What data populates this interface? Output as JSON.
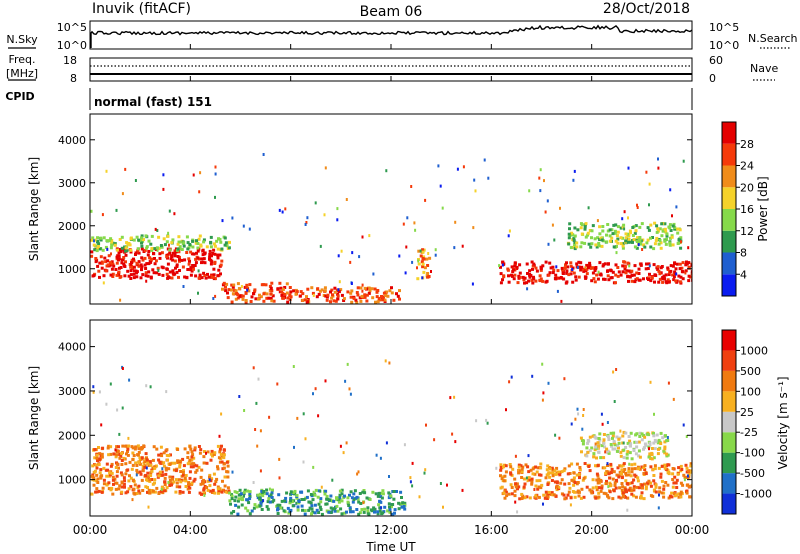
{
  "header": {
    "station": "Inuvik (fitACF)",
    "beam": "Beam 06",
    "date": "28/Oct/2018"
  },
  "top_panels": {
    "nsky": {
      "label": "N.Sky",
      "left_ticks": [
        "10^5",
        "10^0"
      ],
      "right_ticks": [
        "10^5",
        "10^0"
      ],
      "right_label": "N.Search"
    },
    "freq": {
      "label_line1": "Freq.",
      "label_line2": "[MHz]",
      "left_ticks": [
        "18",
        "8"
      ],
      "right_ticks": [
        "60",
        "0"
      ],
      "right_label": "Nave"
    },
    "cpid": {
      "label": "CPID",
      "mode": "normal (fast) 151"
    }
  },
  "chart_data": [
    {
      "type": "heatmap",
      "name": "power",
      "ylabel": "Slant Range [km]",
      "yticks": [
        "4000",
        "3000",
        "2000",
        "1000"
      ],
      "ylim": [
        180,
        4600
      ],
      "colorbar_label": "Power [dB]",
      "colorbar_ticks": [
        "28",
        "24",
        "20",
        "16",
        "12",
        "8",
        "4"
      ],
      "colors": [
        "#0a1cf0",
        "#1f5fd0",
        "#2e9a4e",
        "#86d94a",
        "#f5d22a",
        "#f08c1a",
        "#f53a0a",
        "#e40000"
      ],
      "blobs": [
        {
          "x": [
            0.0,
            5.2
          ],
          "y": [
            800,
            1500
          ],
          "level": 7
        },
        {
          "x": [
            0.0,
            5.5
          ],
          "y": [
            1450,
            1800
          ],
          "level": 3
        },
        {
          "x": [
            5.2,
            8.0
          ],
          "y": [
            250,
            700
          ],
          "level": 6
        },
        {
          "x": [
            8.0,
            12.3
          ],
          "y": [
            250,
            600
          ],
          "level": 6
        },
        {
          "x": [
            13.0,
            13.5
          ],
          "y": [
            800,
            1500
          ],
          "level": 5
        },
        {
          "x": [
            16.3,
            24.0
          ],
          "y": [
            700,
            1200
          ],
          "level": 7
        },
        {
          "x": [
            19.0,
            23.5
          ],
          "y": [
            1500,
            2100
          ],
          "level": 3
        }
      ]
    },
    {
      "type": "heatmap",
      "name": "velocity",
      "ylabel": "Slant Range [km]",
      "yticks": [
        "4000",
        "3000",
        "2000",
        "1000"
      ],
      "ylim": [
        180,
        4600
      ],
      "colorbar_label": "Velocity [m s⁻¹]",
      "colorbar_ticks": [
        "1000",
        "500",
        "100",
        "25",
        "-25",
        "-100",
        "-500",
        "-1000"
      ],
      "colors": [
        "#1030d8",
        "#2070c8",
        "#2f9a50",
        "#88d84a",
        "#c8c8c8",
        "#f7b020",
        "#f07a10",
        "#f04010",
        "#e80000"
      ],
      "blobs": [
        {
          "x": [
            0.0,
            5.5
          ],
          "y": [
            700,
            1800
          ],
          "level": 6
        },
        {
          "x": [
            5.5,
            12.5
          ],
          "y": [
            250,
            800
          ],
          "level": 2
        },
        {
          "x": [
            16.3,
            24.0
          ],
          "y": [
            600,
            1400
          ],
          "level": 6
        },
        {
          "x": [
            19.5,
            23.0
          ],
          "y": [
            1500,
            2100
          ],
          "level": 4
        }
      ]
    }
  ],
  "time_axis": {
    "label": "Time UT",
    "ticks": [
      "00:00",
      "04:00",
      "08:00",
      "12:00",
      "16:00",
      "20:00",
      "00:00"
    ],
    "range_hours": [
      0,
      24
    ]
  }
}
